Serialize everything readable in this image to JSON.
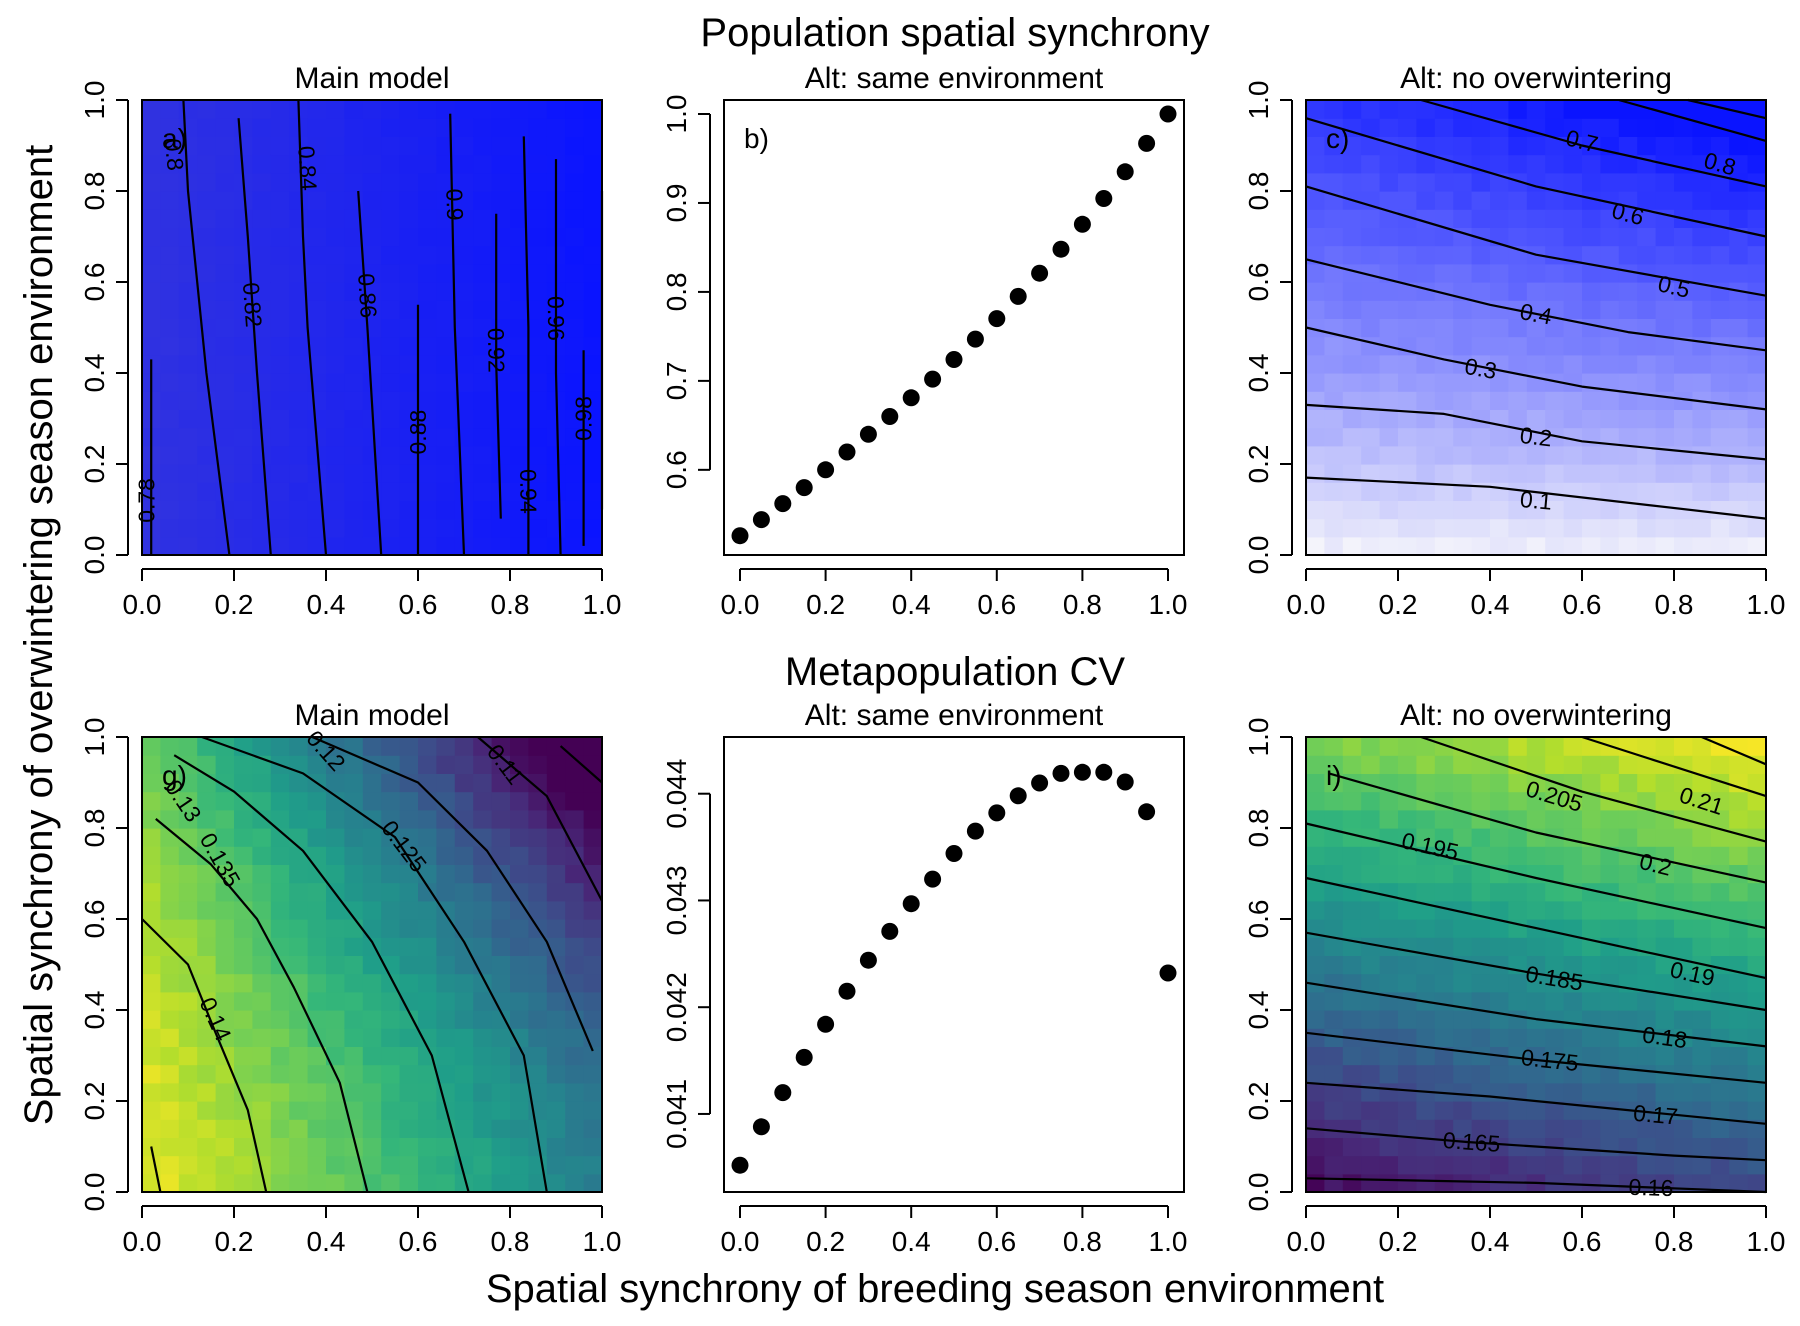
{
  "figure": {
    "top_title": "Population spatial synchrony",
    "middle_title": "Metapopulation CV",
    "xlabel": "Spatial synchrony of breeding season environment",
    "ylabel": "Spatial synchrony of overwintering season environment"
  },
  "chart_data": [
    {
      "id": "a",
      "type": "heatmap",
      "title": "Main model",
      "panel_label": "a)",
      "xlim": [
        0,
        1
      ],
      "ylim": [
        0,
        1
      ],
      "x_ticks": [
        "0.0",
        "0.2",
        "0.4",
        "0.6",
        "0.8",
        "1.0"
      ],
      "y_ticks": [
        "0.0",
        "0.2",
        "0.4",
        "0.6",
        "0.8",
        "1.0"
      ],
      "colormap": "blue",
      "colors": {
        "low": "#3a3ad8",
        "high": "#0a14ff"
      },
      "contours": [
        {
          "level": "0.78",
          "points": [
            [
              0.02,
              0.0
            ],
            [
              0.02,
              0.43
            ]
          ],
          "label_at": [
            0.01,
            0.12
          ]
        },
        {
          "level": "0.8",
          "points": [
            [
              0.19,
              0.0
            ],
            [
              0.14,
              0.4
            ],
            [
              0.12,
              0.6
            ],
            [
              0.1,
              0.8
            ],
            [
              0.09,
              1.0
            ]
          ],
          "label_at": [
            0.07,
            0.88
          ]
        },
        {
          "level": "0.82",
          "points": [
            [
              0.28,
              0.0
            ],
            [
              0.25,
              0.4
            ],
            [
              0.23,
              0.7
            ],
            [
              0.21,
              0.96
            ]
          ],
          "label_at": [
            0.24,
            0.55
          ]
        },
        {
          "level": "0.84",
          "points": [
            [
              0.4,
              0.0
            ],
            [
              0.36,
              0.5
            ],
            [
              0.35,
              0.7
            ],
            [
              0.34,
              1.0
            ]
          ],
          "label_at": [
            0.36,
            0.85
          ]
        },
        {
          "level": "0.86",
          "points": [
            [
              0.52,
              0.0
            ],
            [
              0.49,
              0.5
            ],
            [
              0.47,
              0.8
            ]
          ],
          "label_at": [
            0.49,
            0.57
          ]
        },
        {
          "level": "0.88",
          "points": [
            [
              0.6,
              0.0
            ],
            [
              0.6,
              0.55
            ]
          ],
          "label_at": [
            0.6,
            0.27
          ]
        },
        {
          "level": "0.9",
          "points": [
            [
              0.7,
              0.0
            ],
            [
              0.68,
              0.5
            ],
            [
              0.67,
              0.97
            ]
          ],
          "label_at": [
            0.68,
            0.77
          ]
        },
        {
          "level": "0.92",
          "points": [
            [
              0.78,
              0.08
            ],
            [
              0.77,
              0.42
            ],
            [
              0.77,
              0.75
            ]
          ],
          "label_at": [
            0.77,
            0.45
          ]
        },
        {
          "level": "0.94",
          "points": [
            [
              0.84,
              0.0
            ],
            [
              0.84,
              0.5
            ],
            [
              0.83,
              0.92
            ]
          ],
          "label_at": [
            0.84,
            0.14
          ]
        },
        {
          "level": "0.96",
          "points": [
            [
              0.91,
              0.0
            ],
            [
              0.9,
              0.4
            ],
            [
              0.9,
              0.87
            ]
          ],
          "label_at": [
            0.9,
            0.52
          ]
        },
        {
          "level": "0.98",
          "points": [
            [
              0.96,
              0.02
            ],
            [
              0.96,
              0.45
            ]
          ],
          "label_at": [
            0.96,
            0.3
          ]
        },
        {
          "level": "",
          "points": [
            [
              1.0,
              0.1
            ],
            [
              1.0,
              0.8
            ]
          ],
          "label_at": null
        }
      ]
    },
    {
      "id": "b",
      "type": "scatter",
      "title": "Alt: same environment",
      "panel_label": "b)",
      "xlim": [
        0,
        1
      ],
      "ylim": [
        0.52,
        1.0
      ],
      "x_ticks": [
        "0.0",
        "0.2",
        "0.4",
        "0.6",
        "0.8",
        "1.0"
      ],
      "y_ticks": [
        "0.6",
        "0.7",
        "0.8",
        "0.9",
        "1.0"
      ],
      "y_tick_values": [
        0.6,
        0.7,
        0.8,
        0.9,
        1.0
      ],
      "x": [
        0,
        0.05,
        0.1,
        0.15,
        0.2,
        0.25,
        0.3,
        0.35,
        0.4,
        0.45,
        0.5,
        0.55,
        0.6,
        0.65,
        0.7,
        0.75,
        0.8,
        0.85,
        0.9,
        0.95,
        1.0
      ],
      "y": [
        0.526,
        0.544,
        0.562,
        0.58,
        0.6,
        0.62,
        0.64,
        0.66,
        0.681,
        0.702,
        0.724,
        0.747,
        0.77,
        0.795,
        0.821,
        0.848,
        0.876,
        0.905,
        0.935,
        0.967,
        1.0
      ]
    },
    {
      "id": "c",
      "type": "heatmap",
      "title": "Alt: no overwintering",
      "panel_label": "c)",
      "xlim": [
        0,
        1
      ],
      "ylim": [
        0,
        1
      ],
      "x_ticks": [
        "0.0",
        "0.2",
        "0.4",
        "0.6",
        "0.8",
        "1.0"
      ],
      "y_ticks": [
        "0.0",
        "0.2",
        "0.4",
        "0.6",
        "0.8",
        "1.0"
      ],
      "colormap": "white-blue",
      "colors": {
        "low": "#f4f4fb",
        "high": "#0a14ff"
      },
      "contours": [
        {
          "level": "0.1",
          "points": [
            [
              0.0,
              0.17
            ],
            [
              0.4,
              0.15
            ],
            [
              1.0,
              0.08
            ]
          ],
          "label_at": [
            0.5,
            0.12
          ]
        },
        {
          "level": "0.2",
          "points": [
            [
              0.0,
              0.33
            ],
            [
              0.3,
              0.31
            ],
            [
              0.6,
              0.25
            ],
            [
              1.0,
              0.21
            ]
          ],
          "label_at": [
            0.5,
            0.26
          ]
        },
        {
          "level": "0.3",
          "points": [
            [
              0.0,
              0.5
            ],
            [
              0.3,
              0.43
            ],
            [
              0.6,
              0.37
            ],
            [
              1.0,
              0.32
            ]
          ],
          "label_at": [
            0.38,
            0.41
          ]
        },
        {
          "level": "0.4",
          "points": [
            [
              0.0,
              0.65
            ],
            [
              0.4,
              0.55
            ],
            [
              0.7,
              0.49
            ],
            [
              1.0,
              0.45
            ]
          ],
          "label_at": [
            0.5,
            0.53
          ]
        },
        {
          "level": "0.5",
          "points": [
            [
              0.0,
              0.81
            ],
            [
              0.5,
              0.66
            ],
            [
              1.0,
              0.57
            ]
          ],
          "label_at": [
            0.8,
            0.59
          ]
        },
        {
          "level": "0.6",
          "points": [
            [
              0.0,
              0.96
            ],
            [
              0.5,
              0.81
            ],
            [
              1.0,
              0.7
            ]
          ],
          "label_at": [
            0.7,
            0.75
          ]
        },
        {
          "level": "0.7",
          "points": [
            [
              0.25,
              1.0
            ],
            [
              0.6,
              0.9
            ],
            [
              1.0,
              0.81
            ]
          ],
          "label_at": [
            0.6,
            0.91
          ]
        },
        {
          "level": "0.8",
          "points": [
            [
              0.68,
              1.0
            ],
            [
              1.0,
              0.91
            ]
          ],
          "label_at": [
            0.9,
            0.86
          ]
        },
        {
          "level": "",
          "points": [
            [
              0.83,
              1.0
            ],
            [
              1.0,
              0.96
            ]
          ],
          "label_at": null
        }
      ]
    },
    {
      "id": "g",
      "type": "heatmap",
      "title": "Main model",
      "panel_label": "g)",
      "xlim": [
        0,
        1
      ],
      "ylim": [
        0,
        1
      ],
      "x_ticks": [
        "0.0",
        "0.2",
        "0.4",
        "0.6",
        "0.8",
        "1.0"
      ],
      "y_ticks": [
        "0.0",
        "0.2",
        "0.4",
        "0.6",
        "0.8",
        "1.0"
      ],
      "colormap": "viridis",
      "contours": [
        {
          "level": "0.14",
          "points": [
            [
              0.02,
              0.1
            ],
            [
              0.04,
              0.0
            ]
          ],
          "label_at": null
        },
        {
          "level": "0.14",
          "points": [
            [
              0.0,
              0.6
            ],
            [
              0.1,
              0.5
            ],
            [
              0.16,
              0.35
            ],
            [
              0.23,
              0.18
            ],
            [
              0.27,
              0.0
            ]
          ],
          "label_at": [
            0.16,
            0.38
          ]
        },
        {
          "level": "0.135",
          "points": [
            [
              0.03,
              0.82
            ],
            [
              0.15,
              0.72
            ],
            [
              0.25,
              0.6
            ],
            [
              0.33,
              0.45
            ],
            [
              0.43,
              0.24
            ],
            [
              0.49,
              0.0
            ]
          ],
          "label_at": [
            0.17,
            0.73
          ]
        },
        {
          "level": "0.13",
          "points": [
            [
              0.07,
              0.96
            ],
            [
              0.2,
              0.88
            ],
            [
              0.35,
              0.75
            ],
            [
              0.5,
              0.55
            ],
            [
              0.63,
              0.3
            ],
            [
              0.71,
              0.0
            ]
          ],
          "label_at": [
            0.09,
            0.86
          ]
        },
        {
          "level": "0.125",
          "points": [
            [
              0.13,
              1.0
            ],
            [
              0.35,
              0.92
            ],
            [
              0.55,
              0.78
            ],
            [
              0.7,
              0.55
            ],
            [
              0.83,
              0.3
            ],
            [
              0.88,
              0.0
            ]
          ],
          "label_at": [
            0.57,
            0.76
          ]
        },
        {
          "level": "0.12",
          "points": [
            [
              0.37,
              1.0
            ],
            [
              0.6,
              0.9
            ],
            [
              0.75,
              0.75
            ],
            [
              0.88,
              0.55
            ],
            [
              0.98,
              0.31
            ]
          ],
          "label_at": [
            0.4,
            0.97
          ]
        },
        {
          "level": "0.11",
          "points": [
            [
              0.73,
              1.0
            ],
            [
              0.88,
              0.87
            ],
            [
              1.0,
              0.64
            ]
          ],
          "label_at": [
            0.79,
            0.94
          ]
        },
        {
          "level": "",
          "points": [
            [
              0.91,
              0.98
            ],
            [
              1.0,
              0.9
            ]
          ],
          "label_at": null
        }
      ]
    },
    {
      "id": "h",
      "type": "scatter",
      "title": "Alt: same environment",
      "panel_label": "",
      "xlim": [
        0,
        1
      ],
      "ylim": [
        0.0404,
        0.0444
      ],
      "x_ticks": [
        "0.0",
        "0.2",
        "0.4",
        "0.6",
        "0.8",
        "1.0"
      ],
      "y_ticks": [
        "0.041",
        "0.042",
        "0.043",
        "0.044"
      ],
      "y_tick_values": [
        0.041,
        0.042,
        0.043,
        0.044
      ],
      "x": [
        0,
        0.05,
        0.1,
        0.15,
        0.2,
        0.25,
        0.3,
        0.35,
        0.4,
        0.45,
        0.5,
        0.55,
        0.6,
        0.65,
        0.7,
        0.75,
        0.8,
        0.85,
        0.9,
        0.95,
        1.0
      ],
      "y": [
        0.04052,
        0.04088,
        0.0412,
        0.04153,
        0.04184,
        0.04215,
        0.04244,
        0.04271,
        0.04297,
        0.0432,
        0.04344,
        0.04365,
        0.04382,
        0.04398,
        0.0441,
        0.04419,
        0.0442,
        0.0442,
        0.04411,
        0.04383,
        0.04232
      ]
    },
    {
      "id": "i",
      "type": "heatmap",
      "title": "Alt: no overwintering",
      "panel_label": "i)",
      "xlim": [
        0,
        1
      ],
      "ylim": [
        0,
        1
      ],
      "x_ticks": [
        "0.0",
        "0.2",
        "0.4",
        "0.6",
        "0.8",
        "1.0"
      ],
      "y_ticks": [
        "0.0",
        "0.2",
        "0.4",
        "0.6",
        "0.8",
        "1.0"
      ],
      "colormap": "viridis",
      "contours": [
        {
          "level": "0.16",
          "points": [
            [
              0.0,
              0.03
            ],
            [
              0.5,
              0.02
            ],
            [
              1.0,
              0.0
            ]
          ],
          "label_at": [
            0.75,
            0.01
          ]
        },
        {
          "level": "0.165",
          "points": [
            [
              0.0,
              0.14
            ],
            [
              0.35,
              0.11
            ],
            [
              0.8,
              0.08
            ],
            [
              1.0,
              0.07
            ]
          ],
          "label_at": [
            0.36,
            0.11
          ]
        },
        {
          "level": "0.17",
          "points": [
            [
              0.0,
              0.24
            ],
            [
              0.4,
              0.21
            ],
            [
              0.8,
              0.17
            ],
            [
              1.0,
              0.15
            ]
          ],
          "label_at": [
            0.76,
            0.17
          ]
        },
        {
          "level": "0.175",
          "points": [
            [
              0.0,
              0.35
            ],
            [
              0.5,
              0.29
            ],
            [
              1.0,
              0.24
            ]
          ],
          "label_at": [
            0.53,
            0.29
          ]
        },
        {
          "level": "0.18",
          "points": [
            [
              0.0,
              0.46
            ],
            [
              0.5,
              0.38
            ],
            [
              1.0,
              0.32
            ]
          ],
          "label_at": [
            0.78,
            0.34
          ]
        },
        {
          "level": "0.185",
          "points": [
            [
              0.0,
              0.57
            ],
            [
              0.5,
              0.48
            ],
            [
              1.0,
              0.4
            ]
          ],
          "label_at": [
            0.54,
            0.47
          ]
        },
        {
          "level": "0.19",
          "points": [
            [
              0.0,
              0.69
            ],
            [
              0.5,
              0.58
            ],
            [
              1.0,
              0.47
            ]
          ],
          "label_at": [
            0.84,
            0.48
          ]
        },
        {
          "level": "0.195",
          "points": [
            [
              0.0,
              0.81
            ],
            [
              0.5,
              0.69
            ],
            [
              1.0,
              0.58
            ]
          ],
          "label_at": [
            0.27,
            0.76
          ]
        },
        {
          "level": "0.2",
          "points": [
            [
              0.05,
              0.92
            ],
            [
              0.5,
              0.79
            ],
            [
              1.0,
              0.68
            ]
          ],
          "label_at": [
            0.76,
            0.72
          ]
        },
        {
          "level": "0.205",
          "points": [
            [
              0.25,
              1.0
            ],
            [
              0.6,
              0.88
            ],
            [
              1.0,
              0.77
            ]
          ],
          "label_at": [
            0.54,
            0.87
          ]
        },
        {
          "level": "0.21",
          "points": [
            [
              0.6,
              1.0
            ],
            [
              1.0,
              0.87
            ]
          ],
          "label_at": [
            0.86,
            0.86
          ]
        },
        {
          "level": "",
          "points": [
            [
              0.86,
              1.0
            ],
            [
              1.0,
              0.94
            ]
          ],
          "label_at": null
        }
      ]
    }
  ]
}
